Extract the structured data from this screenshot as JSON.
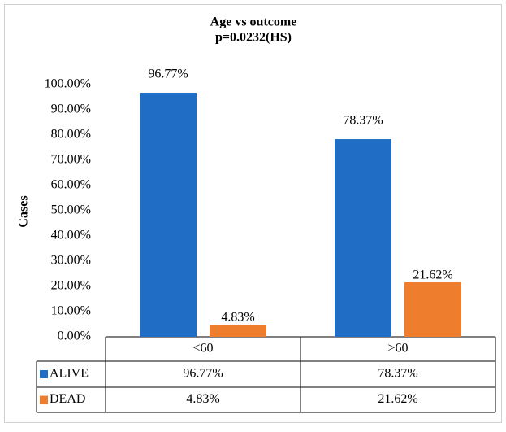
{
  "chart_data": {
    "type": "bar",
    "title": "Age vs outcome",
    "subtitle": "p=0.0232(HS)",
    "y_label": "Cases",
    "categories": [
      "<60",
      ">60"
    ],
    "series": [
      {
        "name": "ALIVE",
        "color": "#1f6dc4",
        "values": [
          96.77,
          78.37
        ],
        "value_labels": [
          "96.77%",
          "78.37%"
        ]
      },
      {
        "name": "DEAD",
        "color": "#ef7d2e",
        "values": [
          4.83,
          21.62
        ],
        "value_labels": [
          "4.83%",
          "21.62%"
        ]
      }
    ],
    "ylim": [
      0,
      100
    ],
    "yticks": [
      {
        "value": 0,
        "label": "0.00%"
      },
      {
        "value": 10,
        "label": "10.00%"
      },
      {
        "value": 20,
        "label": "20.00%"
      },
      {
        "value": 30,
        "label": "30.00%"
      },
      {
        "value": 40,
        "label": "40.00%"
      },
      {
        "value": 50,
        "label": "50.00%"
      },
      {
        "value": 60,
        "label": "60.00%"
      },
      {
        "value": 70,
        "label": "70.00%"
      },
      {
        "value": 80,
        "label": "80.00%"
      },
      {
        "value": 90,
        "label": "90.00%"
      },
      {
        "value": 100,
        "label": "100.00%"
      }
    ],
    "grid": false
  }
}
